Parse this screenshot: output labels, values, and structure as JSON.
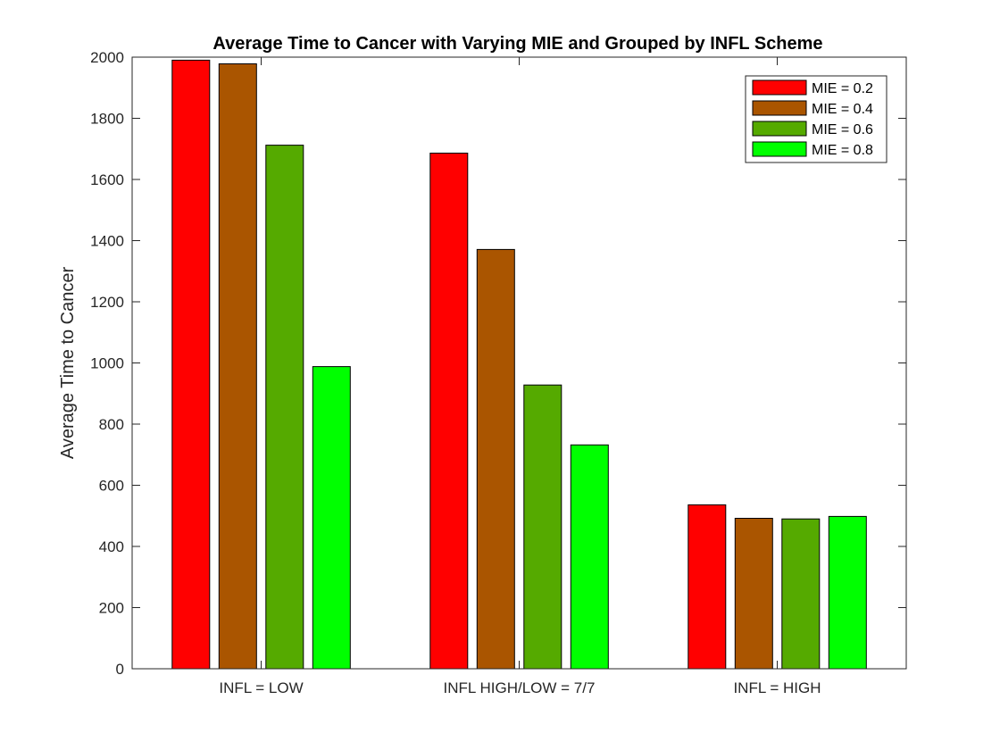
{
  "chart_data": {
    "type": "bar",
    "title": "Average Time to Cancer with Varying MIE and Grouped by INFL Scheme",
    "xlabel": "",
    "ylabel": "Average Time to Cancer",
    "ylim": [
      0,
      2000
    ],
    "yticks": [
      0,
      200,
      400,
      600,
      800,
      1000,
      1200,
      1400,
      1600,
      1800,
      2000
    ],
    "categories": [
      "INFL = LOW",
      "INFL HIGH/LOW = 7/7",
      "INFL = HIGH"
    ],
    "series": [
      {
        "name": "MIE = 0.2",
        "color": "#ff0000",
        "values": [
          1990,
          1686,
          536
        ]
      },
      {
        "name": "MIE = 0.4",
        "color": "#aa5500",
        "values": [
          1978,
          1371,
          492
        ]
      },
      {
        "name": "MIE = 0.6",
        "color": "#55aa00",
        "values": [
          1712,
          928,
          490
        ]
      },
      {
        "name": "MIE = 0.8",
        "color": "#00ff00",
        "values": [
          988,
          732,
          498
        ]
      }
    ],
    "legend_position": "top-right",
    "grid": false
  }
}
